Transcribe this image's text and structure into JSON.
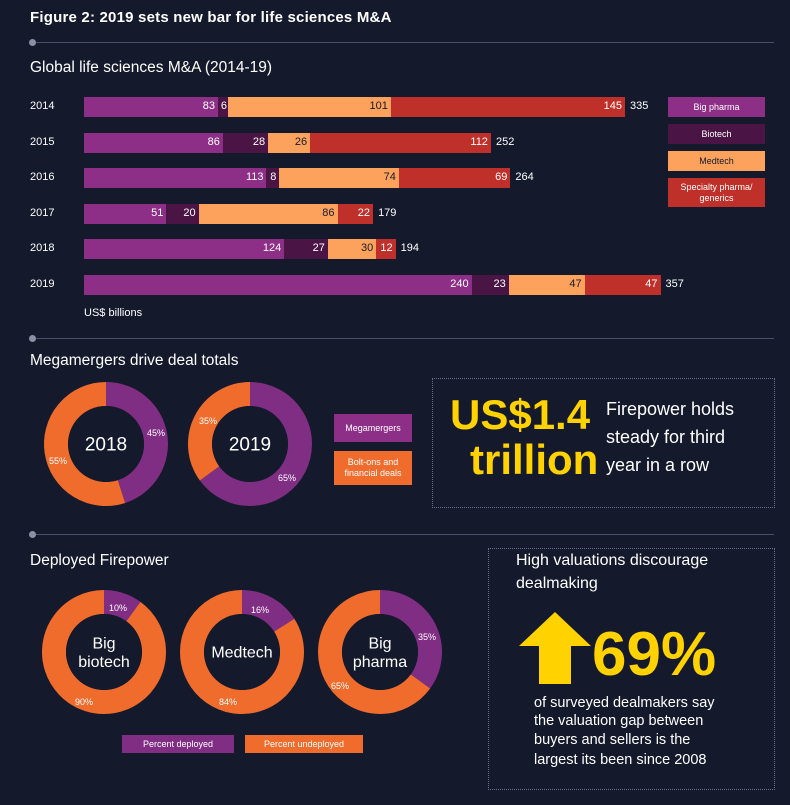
{
  "figure_title": "Figure 2: 2019 sets new bar for life sciences M&A",
  "colors": {
    "big_pharma": "#8d2f87",
    "biotech": "#4a1544",
    "medtech": "#fda25c",
    "specialty": "#c0302a",
    "orange": "#ef6c2c",
    "yellow": "#ffd200",
    "purple": "#7f2e83"
  },
  "section1": {
    "title": "Global life sciences M&A (2014-19)",
    "unit_label": "US$ billions",
    "legend": [
      "Big pharma",
      "Biotech",
      "Medtech",
      "Specialty pharma/ generics"
    ]
  },
  "chart_data": [
    {
      "type": "bar",
      "orientation": "horizontal",
      "stacked": true,
      "title": "Global life sciences M&A (2014-19)",
      "xlabel": "US$ billions",
      "categories": [
        "2014",
        "2015",
        "2016",
        "2017",
        "2018",
        "2019"
      ],
      "series": [
        {
          "name": "Big pharma",
          "values": [
            83,
            86,
            113,
            51,
            124,
            240
          ]
        },
        {
          "name": "Biotech",
          "values": [
            6,
            28,
            8,
            20,
            27,
            23
          ]
        },
        {
          "name": "Medtech",
          "values": [
            101,
            26,
            74,
            86,
            30,
            47
          ]
        },
        {
          "name": "Specialty pharma/ generics",
          "values": [
            145,
            112,
            69,
            22,
            12,
            47
          ]
        }
      ],
      "totals": [
        335,
        252,
        264,
        179,
        194,
        357
      ],
      "legend_position": "right",
      "xlim": [
        0,
        375
      ]
    },
    {
      "type": "pie",
      "title": "Megamergers drive deal totals",
      "donuts": [
        {
          "label": "2018",
          "slices": [
            {
              "name": "Megamergers",
              "value": 45
            },
            {
              "name": "Bolt-ons and financial deals",
              "value": 55
            }
          ]
        },
        {
          "label": "2019",
          "slices": [
            {
              "name": "Megamergers",
              "value": 65
            },
            {
              "name": "Bolt-ons and financial deals",
              "value": 35
            }
          ]
        }
      ]
    },
    {
      "type": "pie",
      "title": "Deployed Firepower",
      "donuts": [
        {
          "label": "Big biotech",
          "slices": [
            {
              "name": "Percent deployed",
              "value": 10
            },
            {
              "name": "Percent undeployed",
              "value": 90
            }
          ]
        },
        {
          "label": "Medtech",
          "slices": [
            {
              "name": "Percent deployed",
              "value": 16
            },
            {
              "name": "Percent undeployed",
              "value": 84
            }
          ]
        },
        {
          "label": "Big pharma",
          "slices": [
            {
              "name": "Percent deployed",
              "value": 35
            },
            {
              "name": "Percent undeployed",
              "value": 65
            }
          ]
        }
      ]
    }
  ],
  "section2": {
    "title": "Megamergers drive deal totals",
    "donut_labels": [
      "2018",
      "2019"
    ],
    "legend": [
      "Megamergers",
      "Bolt-ons and financial deals"
    ],
    "big_number_line1": "US$1.4",
    "big_number_line2": "trillion",
    "callout_line1": "Firepower holds",
    "callout_line2": "steady for third",
    "callout_line3": "year in a row"
  },
  "section3": {
    "title": "Deployed Firepower",
    "donut_labels": [
      [
        "Big",
        "biotech"
      ],
      [
        "Medtech"
      ],
      [
        "Big",
        "pharma"
      ]
    ],
    "legend": [
      "Percent deployed",
      "Percent undeployed"
    ]
  },
  "section4": {
    "title_line1": "High valuations discourage",
    "title_line2": "dealmaking",
    "stat": "69%",
    "body_line1": "of surveyed dealmakers say",
    "body_line2": "the valuation gap between",
    "body_line3": "buyers and sellers is the",
    "body_line4": "largest its been since 2008"
  }
}
